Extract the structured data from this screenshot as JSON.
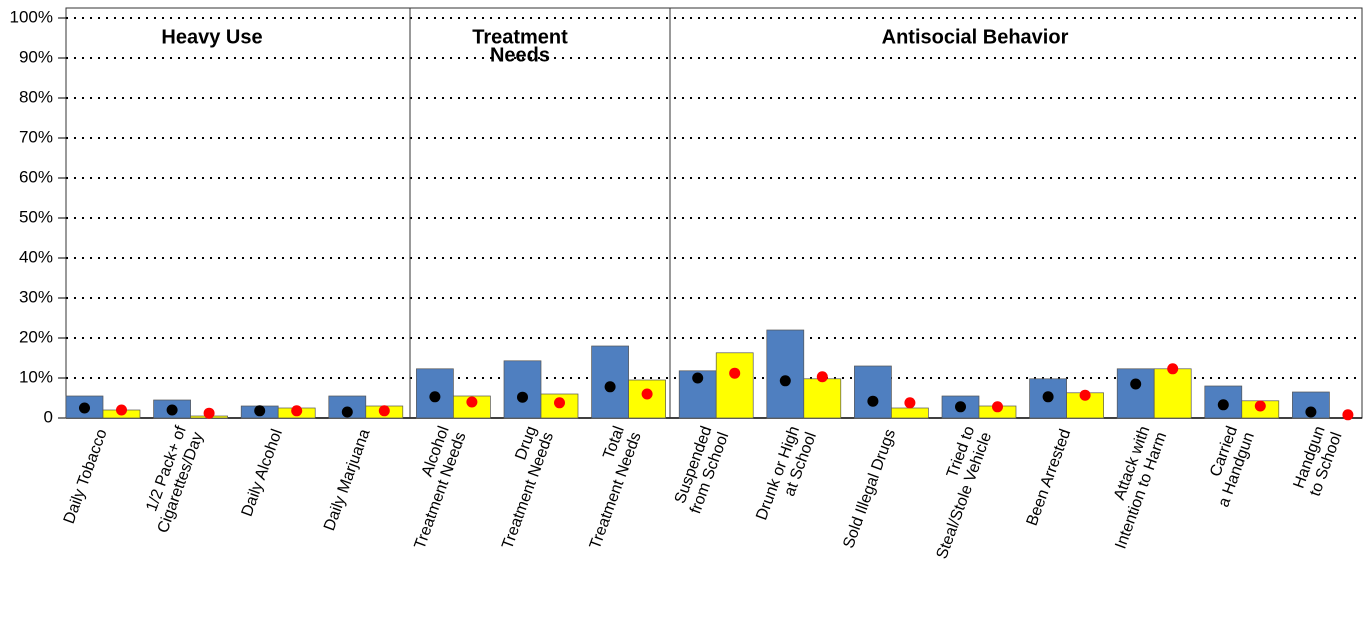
{
  "chart_data": {
    "type": "bar",
    "sections": [
      [
        "Heavy Use"
      ],
      [
        "Treatment",
        "Needs"
      ],
      [
        "Antisocial Behavior"
      ]
    ],
    "categories": [
      [
        "Daily Tobacco"
      ],
      [
        "1/2 Pack+ of",
        "Cigarettes/Day"
      ],
      [
        "Daily Alcohol"
      ],
      [
        "Daily Marjuana"
      ],
      [
        "Alcohol",
        "Treatment Needs"
      ],
      [
        "Drug",
        "Treatment Needs"
      ],
      [
        "Total",
        "Treatment Needs"
      ],
      [
        "Suspended",
        "from School"
      ],
      [
        "Drunk or High",
        "at School"
      ],
      [
        "Sold Illegal Drugs"
      ],
      [
        "Tried to",
        "Steal/Stole Vehicle"
      ],
      [
        "Been Arrested"
      ],
      [
        "Attack with",
        "Intention to Harm"
      ],
      [
        "Carried",
        "a Handgun"
      ],
      [
        "Handgun",
        "to School"
      ]
    ],
    "series": [
      {
        "kind": "bar",
        "color": "#4f7fc0",
        "values": [
          5.5,
          4.5,
          3,
          5.5,
          12.3,
          14.3,
          18,
          11.8,
          22,
          13,
          5.5,
          9.8,
          12.3,
          8,
          6.5
        ]
      },
      {
        "kind": "bar",
        "color": "#ffff00",
        "values": [
          2,
          0.5,
          2.5,
          3,
          5.5,
          6,
          9.5,
          16.3,
          9.8,
          2.5,
          3,
          6.3,
          12.3,
          4.3,
          null
        ]
      },
      {
        "kind": "dot",
        "color": "#000000",
        "values": [
          2.5,
          2,
          1.8,
          1.5,
          5.3,
          5.2,
          7.8,
          10,
          9.3,
          4.2,
          2.8,
          5.3,
          8.5,
          3.3,
          1.5
        ]
      },
      {
        "kind": "dot",
        "color": "#ff0000",
        "values": [
          2,
          1.2,
          1.8,
          1.8,
          4,
          3.8,
          6,
          11.2,
          10.3,
          3.8,
          2.8,
          5.7,
          12.3,
          3,
          0.8
        ]
      }
    ],
    "ylim": [
      0,
      102.5
    ],
    "yticks": [
      0,
      {
        "value": 10,
        "label": "10%"
      },
      {
        "value": 20,
        "label": "20%"
      },
      {
        "value": 30,
        "label": "30%"
      },
      {
        "value": 40,
        "label": "40%"
      },
      {
        "value": 50,
        "label": "50%"
      },
      {
        "value": 60,
        "label": "60%"
      },
      {
        "value": 70,
        "label": "70%"
      },
      {
        "value": 80,
        "label": "80%"
      },
      {
        "value": 90,
        "label": "90%"
      },
      {
        "value": 100,
        "label": "100%"
      }
    ],
    "grid": true
  }
}
